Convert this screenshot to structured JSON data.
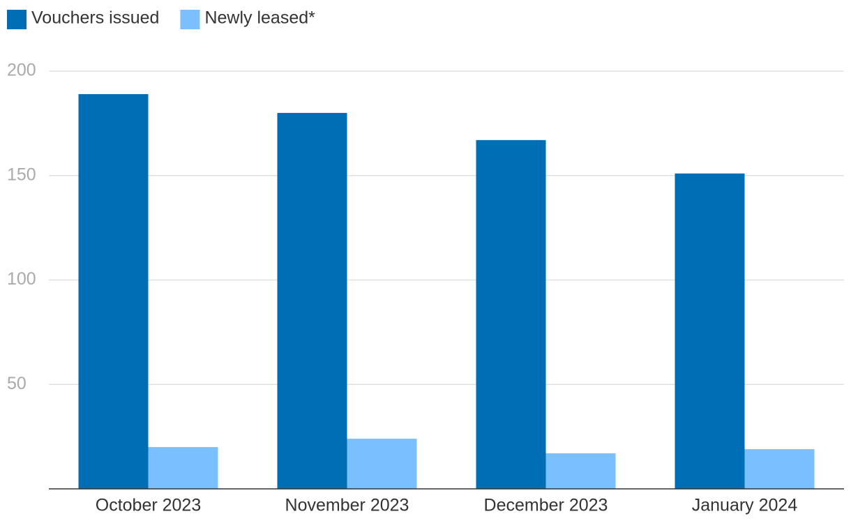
{
  "chart_data": {
    "type": "bar",
    "categories": [
      "October 2023",
      "November 2023",
      "December 2023",
      "January 2024"
    ],
    "series": [
      {
        "name": "Vouchers issued",
        "color": "#006eb4",
        "values": [
          189,
          180,
          167,
          151
        ]
      },
      {
        "name": "Newly leased*",
        "color": "#7abfff",
        "values": [
          20,
          24,
          17,
          19
        ]
      }
    ],
    "ylim": [
      0,
      200
    ],
    "yticks": [
      50,
      100,
      150,
      200
    ],
    "grid": true,
    "legend": "top-left"
  }
}
